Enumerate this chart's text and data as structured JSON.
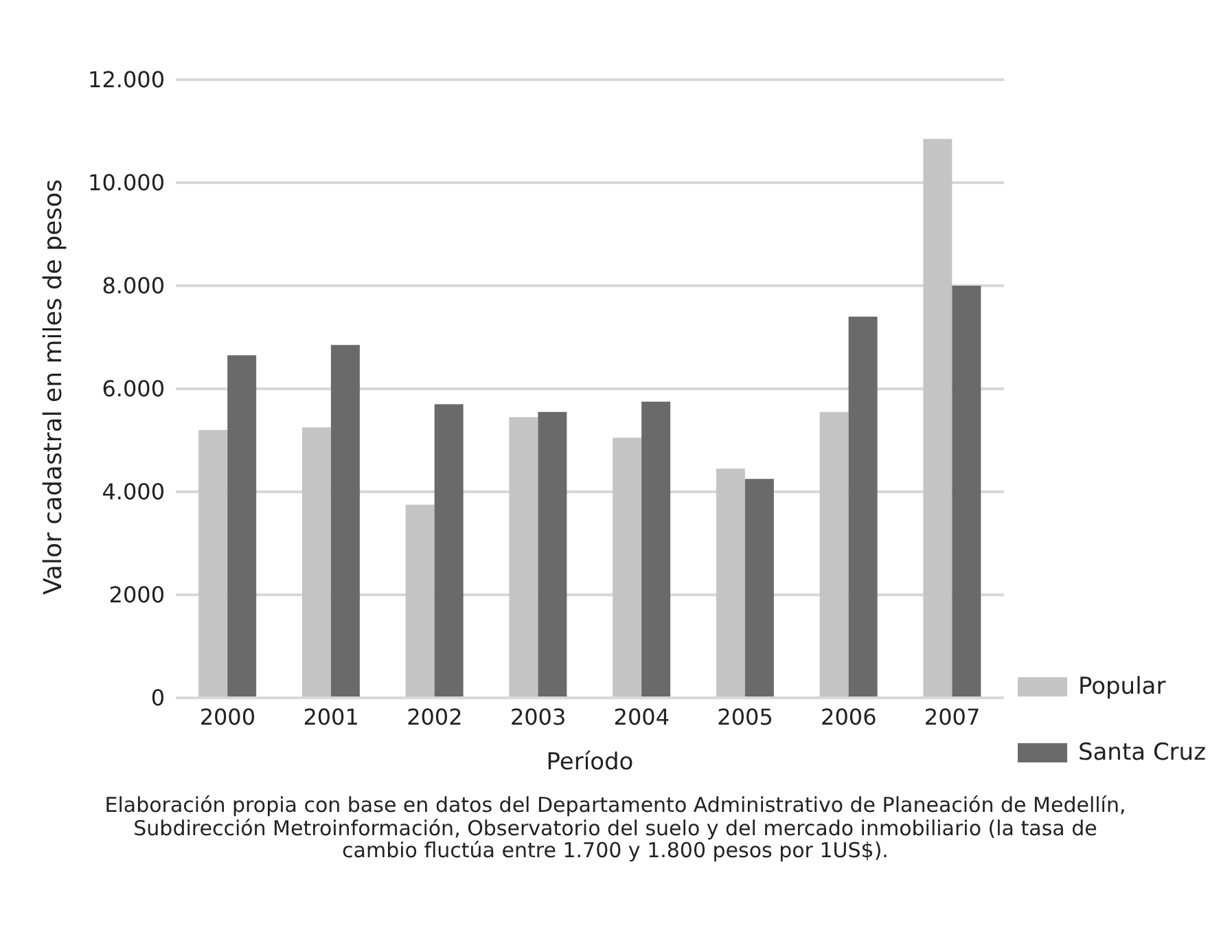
{
  "chart_data": {
    "type": "bar",
    "xlabel": "Período",
    "ylabel": "Valor cadastral en miles de pesos",
    "categories": [
      "2000",
      "2001",
      "2002",
      "2003",
      "2004",
      "2005",
      "2006",
      "2007"
    ],
    "series": [
      {
        "name": "Popular",
        "color": "#c4c4c4",
        "values": [
          5200,
          5250,
          3750,
          5450,
          5050,
          4450,
          5550,
          10850
        ]
      },
      {
        "name": "Santa Cruz",
        "color": "#6a6a6a",
        "values": [
          6650,
          6850,
          5700,
          5550,
          5750,
          4250,
          7400,
          8000
        ]
      }
    ],
    "ylim": [
      0,
      12000
    ],
    "yticks": [
      {
        "value": 0,
        "label": "0"
      },
      {
        "value": 2000,
        "label": "2000"
      },
      {
        "value": 4000,
        "label": "4.000"
      },
      {
        "value": 6000,
        "label": "6.000"
      },
      {
        "value": 8000,
        "label": "8.000"
      },
      {
        "value": 10000,
        "label": "10.000"
      },
      {
        "value": 12000,
        "label": "12.000"
      }
    ],
    "grid": "y",
    "legend": "right",
    "annotations": [
      "Elaboración propia con base en datos del Departamento Administrativo de Planeación de Medellín, Subdirección Metroinformación, Observatorio del suelo y del mercado inmobiliario (la tasa de cambio fluctúa entre 1.700 y 1.800 pesos por 1US$)."
    ]
  }
}
